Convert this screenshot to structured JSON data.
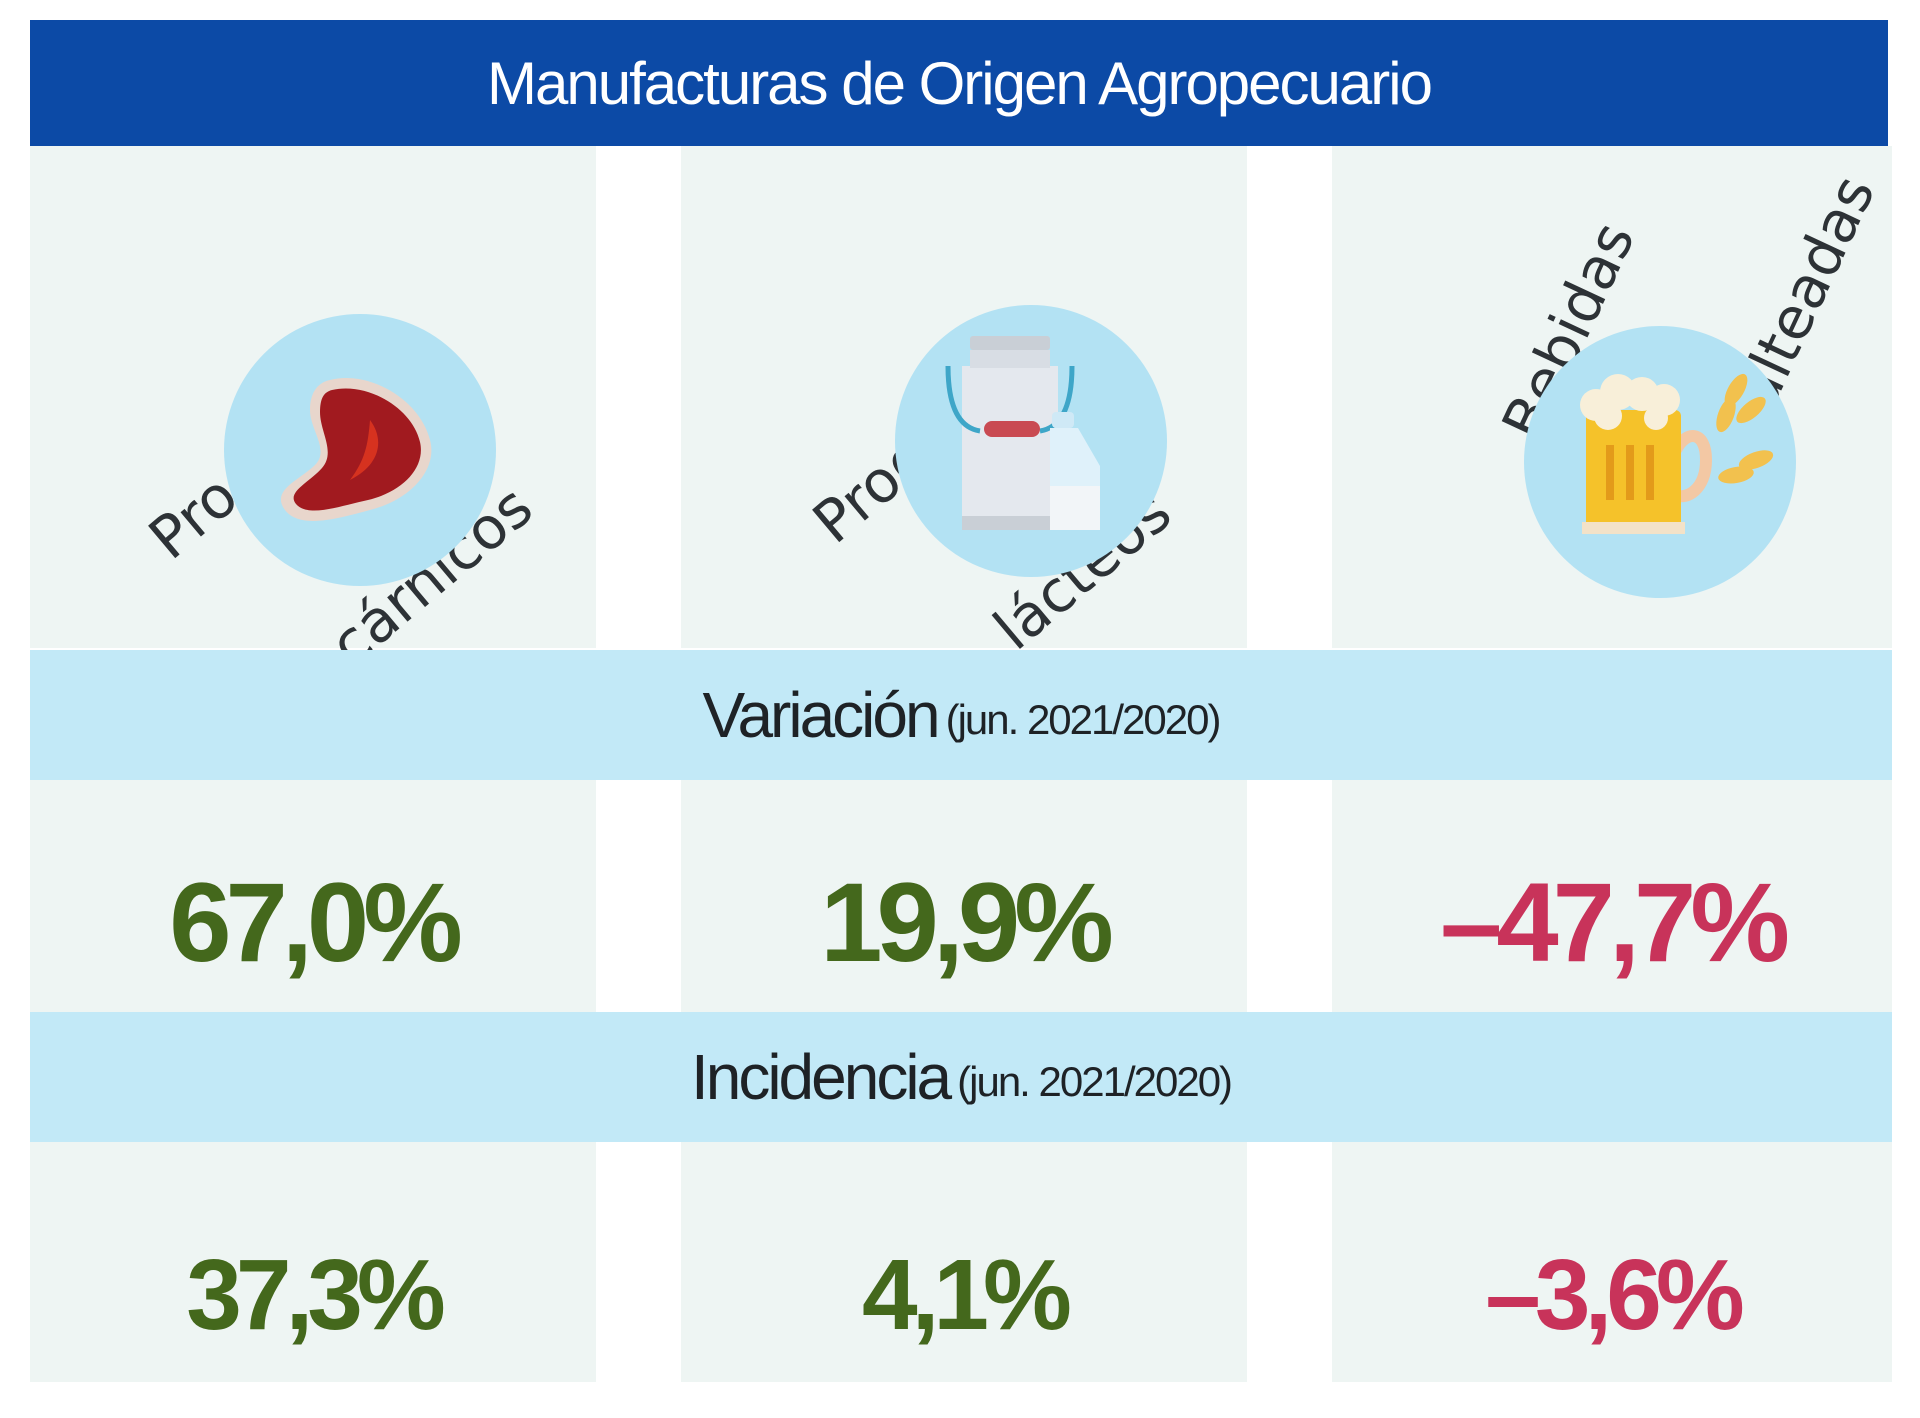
{
  "header": {
    "title": "Manufacturas de Origen Agropecuario"
  },
  "categories": [
    {
      "line1": "Productos",
      "line2": "cárnicos",
      "icon": "meat-steak-icon"
    },
    {
      "line1": "Productos",
      "line2": "lácteos",
      "icon": "milk-can-icon"
    },
    {
      "line1": "Bebidas",
      "line2": "malteadas",
      "icon": "beer-mug-icon"
    }
  ],
  "variacion": {
    "label": "Variación",
    "period": "(jun. 2021/2020)",
    "values": [
      "67,0%",
      "19,9%",
      "–47,7%"
    ]
  },
  "incidencia": {
    "label": "Incidencia",
    "period": "(jun. 2021/2020)",
    "values": [
      "37,3%",
      "4,1%",
      "–3,6%"
    ]
  },
  "colors": {
    "header": "#0c4aa6",
    "band": "#c2e9f7",
    "positive": "#44681c",
    "negative": "#c8335a"
  }
}
